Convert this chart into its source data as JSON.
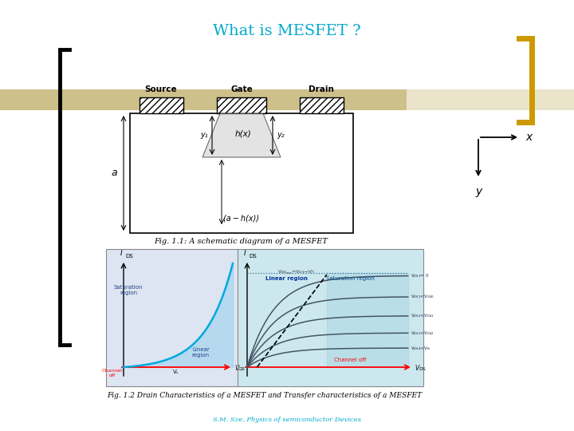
{
  "title": "What is MESFET ?",
  "title_color": "#00AACC",
  "title_fontsize": 14,
  "fig_caption1": "Fig. 1.1: A schematic diagram of a MESFET",
  "fig_caption2": "Fig. 1.2 Drain Characteristics of a MESFET and Transfer characteristics of a MESFET",
  "fig_caption3": "S.M. Sze, Physics of semiconductor Devices",
  "bg_color": "#FFFFFF",
  "bracket_color_left": "#000000",
  "bracket_color_right": "#CC9900",
  "tan_bar_color": "#C8B87A",
  "x_label": "x",
  "y_label": "y"
}
